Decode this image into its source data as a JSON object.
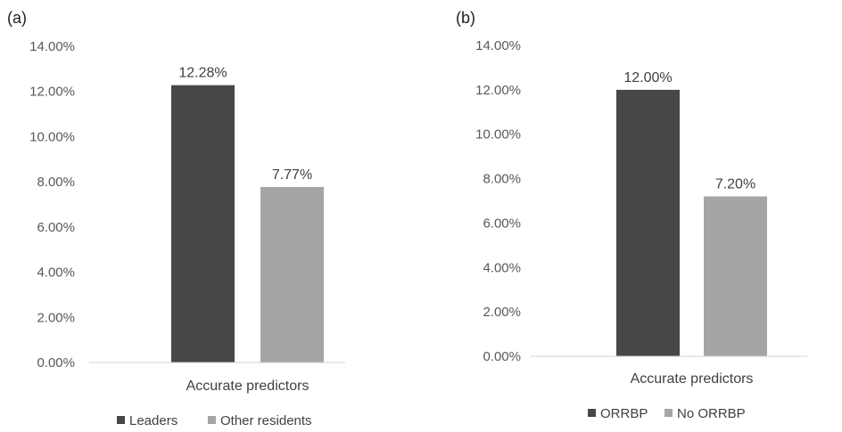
{
  "panels": [
    {
      "label": "(a)"
    },
    {
      "label": "(b)"
    }
  ],
  "chart_data": [
    {
      "type": "bar",
      "panel_label": "(a)",
      "categories": [
        "Accurate predictors"
      ],
      "series": [
        {
          "name": "Leaders",
          "values": [
            12.28
          ],
          "data_label": "12.28%",
          "color": "#474747"
        },
        {
          "name": "Other residents",
          "values": [
            7.77
          ],
          "data_label": "7.77%",
          "color": "#a5a5a5"
        }
      ],
      "y_ticks": [
        "0.00%",
        "2.00%",
        "4.00%",
        "6.00%",
        "8.00%",
        "10.00%",
        "12.00%",
        "14.00%"
      ],
      "ylim": [
        0,
        14
      ],
      "grid": false,
      "legend_position": "bottom"
    },
    {
      "type": "bar",
      "panel_label": "(b)",
      "categories": [
        "Accurate predictors"
      ],
      "series": [
        {
          "name": "ORRBP",
          "values": [
            12.0
          ],
          "data_label": "12.00%",
          "color": "#474747"
        },
        {
          "name": "No ORRBP",
          "values": [
            7.2
          ],
          "data_label": "7.20%",
          "color": "#a5a5a5"
        }
      ],
      "y_ticks": [
        "0.00%",
        "2.00%",
        "4.00%",
        "6.00%",
        "8.00%",
        "10.00%",
        "12.00%",
        "14.00%"
      ],
      "ylim": [
        0,
        14
      ],
      "grid": false,
      "legend_position": "bottom"
    }
  ]
}
